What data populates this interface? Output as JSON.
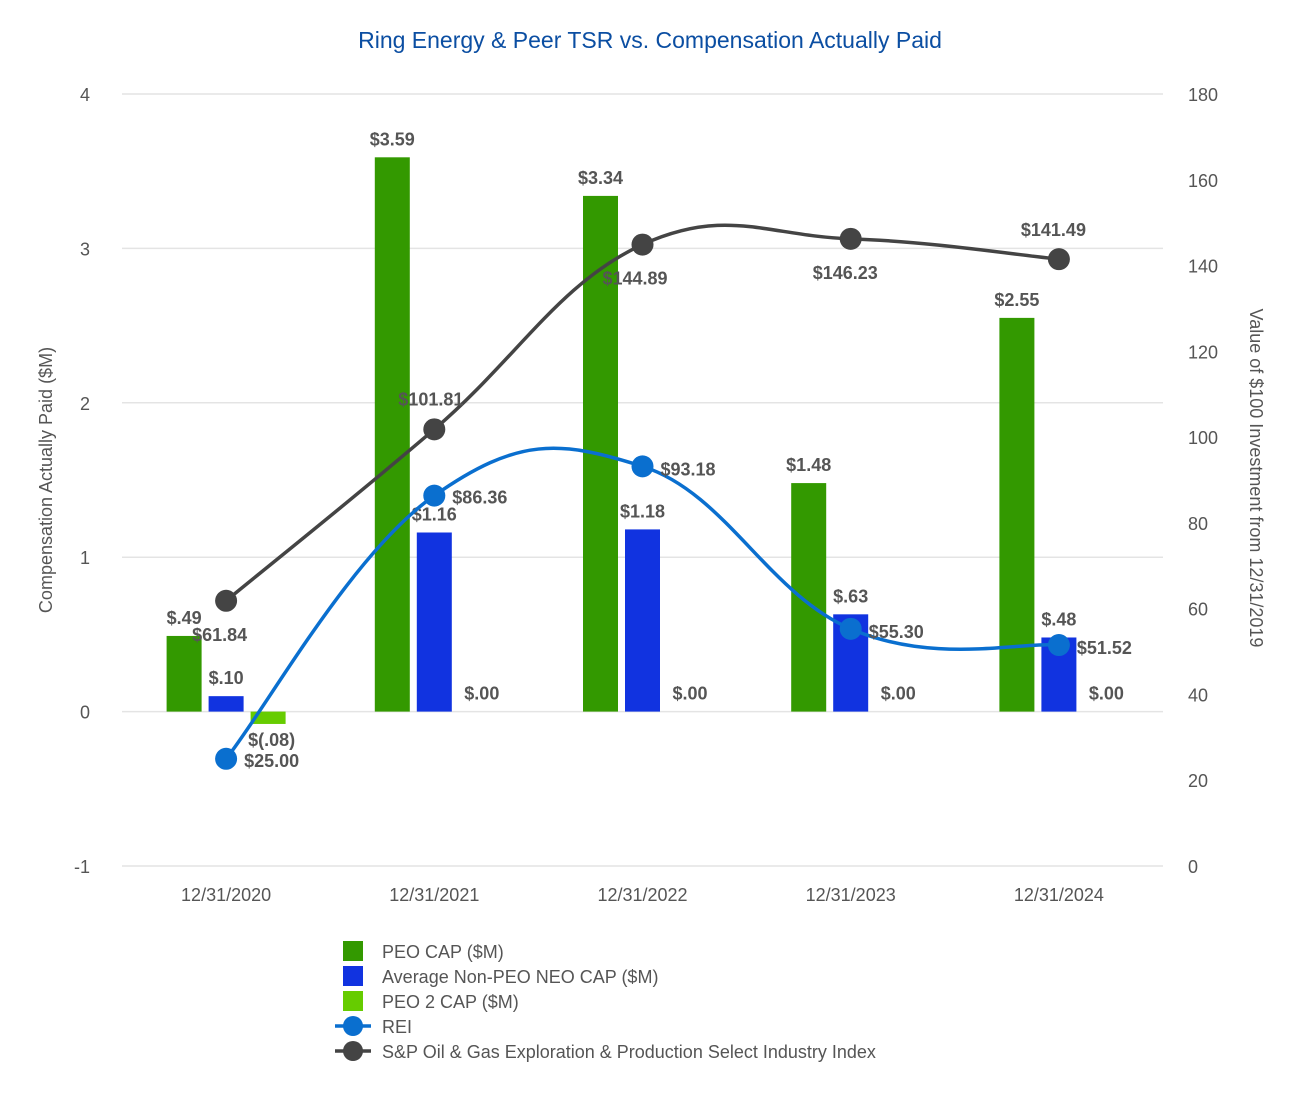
{
  "chart_data": {
    "type": "bar",
    "title": "Ring Energy & Peer TSR vs. Compensation Actually Paid",
    "categories": [
      "12/31/2020",
      "12/31/2021",
      "12/31/2022",
      "12/31/2023",
      "12/31/2024"
    ],
    "y_left": {
      "label": "Compensation Actually Paid ($M)",
      "range": [
        -1,
        4
      ],
      "ticks": [
        "-1",
        "0",
        "1",
        "2",
        "3",
        "4"
      ]
    },
    "y_right": {
      "label": "Value of $100 Investment from 12/31/2019",
      "range": [
        0,
        180
      ],
      "ticks": [
        "0",
        "20",
        "40",
        "60",
        "80",
        "100",
        "120",
        "140",
        "160",
        "180"
      ]
    },
    "bar_series": [
      {
        "name": "PEO CAP ($M)",
        "color": "#339900",
        "values": [
          0.49,
          3.59,
          3.34,
          1.48,
          2.55
        ],
        "labels": [
          "$.49",
          "$3.59",
          "$3.34",
          "$1.48",
          "$2.55"
        ]
      },
      {
        "name": "Average Non-PEO NEO CAP ($M)",
        "color": "#1133e0",
        "values": [
          0.1,
          1.16,
          1.18,
          0.63,
          0.48
        ],
        "labels": [
          "$.10",
          "$1.16",
          "$1.18",
          "$.63",
          "$.48"
        ]
      },
      {
        "name": "PEO 2 CAP ($M)",
        "color": "#66cc00",
        "values": [
          -0.08,
          0.0,
          0.0,
          0.0,
          0.0
        ],
        "labels": [
          "$(.08)",
          "$.00",
          "$.00",
          "$.00",
          "$.00"
        ]
      }
    ],
    "line_series": [
      {
        "name": "REI",
        "color": "#0a6fcf",
        "values": [
          25.0,
          86.36,
          93.18,
          55.3,
          51.52
        ],
        "labels": [
          "$25.00",
          "$86.36",
          "$93.18",
          "$55.30",
          "$51.52"
        ]
      },
      {
        "name": "S&P Oil & Gas Exploration & Production Select Industry Index",
        "color": "#444444",
        "values": [
          61.84,
          101.81,
          144.89,
          146.23,
          141.49
        ],
        "labels": [
          "$61.84",
          "$101.81",
          "$144.89",
          "$146.23",
          "$141.49"
        ]
      }
    ],
    "legend_position": "bottom"
  }
}
